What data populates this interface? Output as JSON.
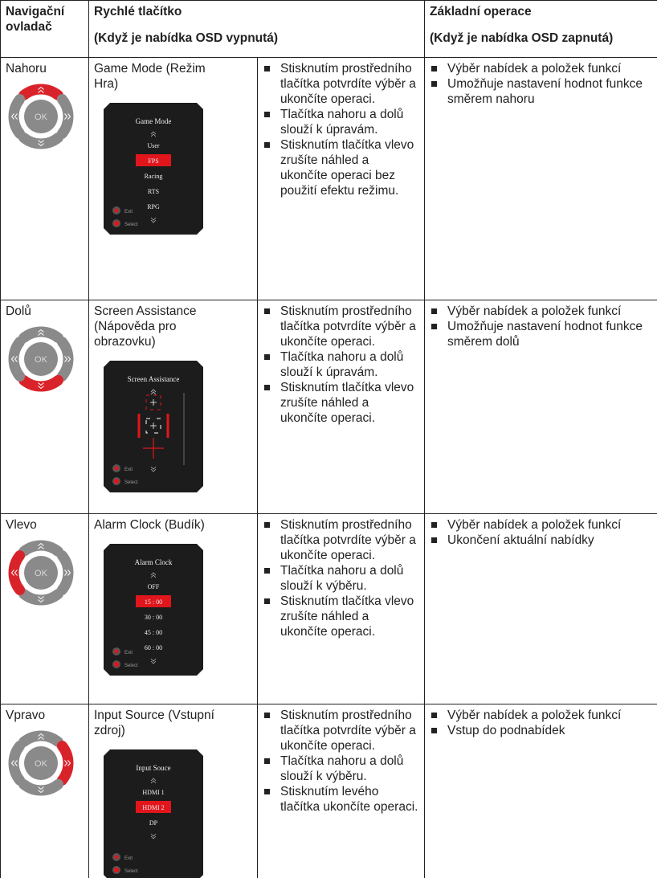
{
  "header": {
    "controller": "Navigační ovladač",
    "quick": "Rychlé tlačítko",
    "quick_note": "(Když je nabídka OSD vypnutá)",
    "basic": "Základní operace",
    "basic_note": "(Když je nabídka OSD zapnutá)"
  },
  "icon_label": "OK",
  "rows": [
    {
      "direction": "Nahoru",
      "button": "Game Mode (Režim Hra)",
      "osd": {
        "title": "Game Mode",
        "items": [
          "User",
          "FPS",
          "Racing",
          "RTS",
          "RPG"
        ],
        "selected": 1,
        "exit": "Exit",
        "select": "Select"
      },
      "notes": [
        "Stisknutím prostředního tlačítka potvrdíte výběr a ukončíte operaci.",
        "Tlačítka nahoru a dolů slouží k úpravám.",
        "Stisknutím tlačítka vlevo zrušíte náhled a ukončíte operaci bez použití efektu režimu."
      ],
      "basic": [
        "Výběr nabídek a položek funkcí",
        "Umožňuje nastavení hodnot funkce směrem nahoru"
      ]
    },
    {
      "direction": "Dolů",
      "button": "Screen Assistance (Nápověda pro obrazovku)",
      "osd": {
        "title": "Screen Assistance",
        "items": [],
        "exit": "Exit",
        "select": "Select"
      },
      "notes": [
        "Stisknutím prostředního tlačítka potvrdíte výběr a ukončíte operaci.",
        "Tlačítka nahoru a dolů slouží k úpravám.",
        "Stisknutím tlačítka vlevo zrušíte náhled a ukončíte operaci."
      ],
      "basic": [
        "Výběr nabídek a položek funkcí",
        "Umožňuje nastavení hodnot funkce směrem dolů"
      ]
    },
    {
      "direction": "Vlevo",
      "button": "Alarm Clock (Budík)",
      "osd": {
        "title": "Alarm Clock",
        "items": [
          "OFF",
          "15 : 00",
          "30 : 00",
          "45 : 00",
          "60 : 00"
        ],
        "selected": 1,
        "exit": "Exit",
        "select": "Select"
      },
      "notes": [
        "Stisknutím prostředního tlačítka potvrdíte výběr a ukončíte operaci.",
        "Tlačítka nahoru a dolů slouží k výběru.",
        "Stisknutím tlačítka vlevo zrušíte náhled a ukončíte operaci."
      ],
      "basic": [
        "Výběr nabídek a položek funkcí",
        "Ukončení aktuální nabídky"
      ]
    },
    {
      "direction": "Vpravo",
      "button": "Input Source (Vstupní zdroj)",
      "osd": {
        "title": "Input Souce",
        "items": [
          "HDMI 1",
          "HDMI 2",
          "DP"
        ],
        "selected": 1,
        "exit": "Exit",
        "select": "Select"
      },
      "notes": [
        "Stisknutím prostředního tlačítka potvrdíte výběr a ukončíte operaci.",
        "Tlačítka nahoru a dolů slouží k výběru.",
        "Stisknutím levého tlačítka ukončíte operaci."
      ],
      "basic": [
        "Výběr nabídek a položek funkcí",
        "Vstup do podnabídek"
      ]
    }
  ]
}
